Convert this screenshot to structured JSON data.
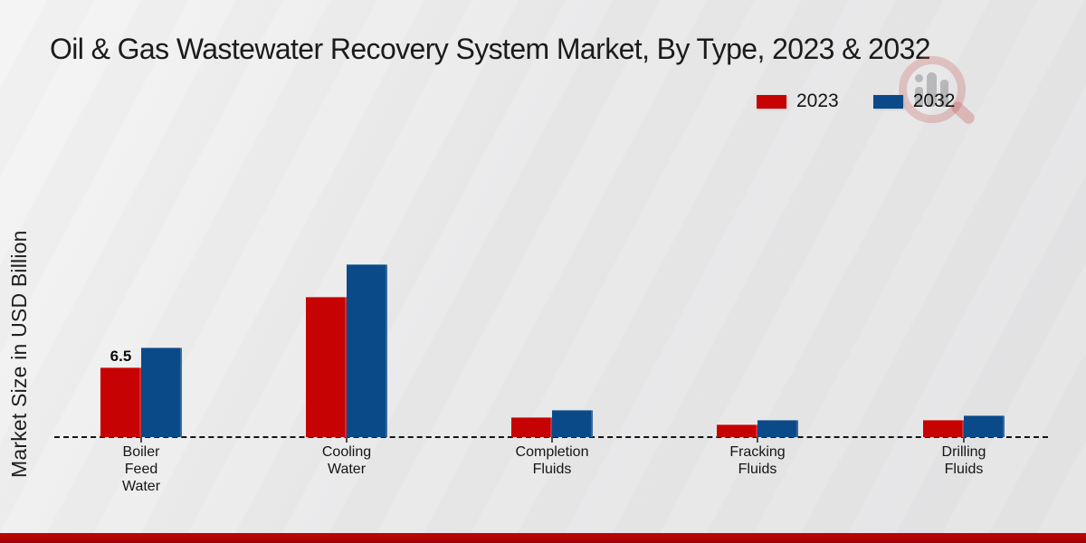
{
  "chart_data": {
    "type": "bar",
    "title": "Oil & Gas Wastewater Recovery System Market, By Type, 2023 & 2032",
    "xlabel": "",
    "ylabel": "Market Size in USD Billion",
    "categories": [
      "Boiler Feed Water",
      "Cooling Water",
      "Completion Fluids",
      "Fracking Fluids",
      "Drilling Fluids"
    ],
    "series": [
      {
        "name": "2023",
        "color": "#c60202",
        "values": [
          6.5,
          13.1,
          1.9,
          1.2,
          1.6
        ]
      },
      {
        "name": "2032",
        "color": "#0b4a88",
        "values": [
          8.4,
          16.2,
          2.5,
          1.6,
          2.0
        ]
      }
    ],
    "data_labels": [
      {
        "series_index": 0,
        "category_index": 0,
        "text": "6.5"
      }
    ],
    "ylim": [
      0,
      18
    ],
    "grid": false,
    "axis_style": "dashed-baseline-only",
    "legend_position": "top-right"
  },
  "legend": {
    "items": [
      {
        "label": "2023",
        "color": "#c60202"
      },
      {
        "label": "2032",
        "color": "#0b4a88"
      }
    ]
  },
  "watermark": {
    "icon": "magnifier-bar-chart-logo",
    "ring_color": "#c64c4c",
    "bars_color": "#919196"
  },
  "page": {
    "background_color": "#e9e9ea",
    "footer_accent_color": "#b20404",
    "title_color": "#1b1b1b"
  }
}
